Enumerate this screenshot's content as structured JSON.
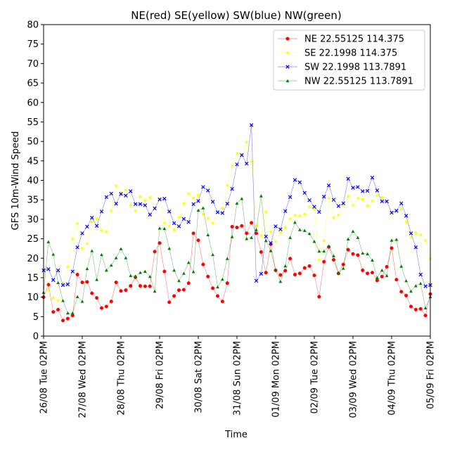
{
  "chart_data": {
    "type": "line",
    "title": "NE(red) SE(yellow) SW(blue) NW(green)",
    "xlabel": "Time",
    "ylabel": "GFS 10m-Wind Speed",
    "ylim": [
      0,
      80
    ],
    "yticks": [
      0,
      5,
      10,
      15,
      20,
      25,
      30,
      35,
      40,
      45,
      50,
      55,
      60,
      65,
      70,
      75,
      80
    ],
    "xlim": [
      0,
      80
    ],
    "xticks": [
      0,
      8,
      16,
      24,
      32,
      40,
      48,
      56,
      64,
      72,
      80
    ],
    "xtick_labels": [
      "26/08 Tue 02PM",
      "27/08 Wed 02PM",
      "28/08 Thu 02PM",
      "29/08 Fri 02PM",
      "30/08 Sat 02PM",
      "31/08 Sun 02PM",
      "01/09 Mon 02PM",
      "02/09 Tue 02PM",
      "03/09 Wed 02PM",
      "04/09 Thu 02PM",
      "05/09 Fri 02PM"
    ],
    "grid": false,
    "legend_position": "top-right",
    "series": [
      {
        "name": "NE 22.55125 114.375",
        "color": "#ff0000",
        "marker": "circle",
        "values": [
          10,
          13.2,
          6.2,
          6.8,
          4,
          4.5,
          5.3,
          15.8,
          13.8,
          13.9,
          11,
          9.8,
          7.2,
          7.6,
          8.9,
          13.8,
          11.6,
          11.8,
          12.9,
          15.1,
          12.9,
          12.8,
          12.8,
          21.7,
          23.9,
          16.6,
          8.7,
          10.3,
          11.8,
          11.9,
          13.6,
          26.4,
          24.6,
          18.4,
          15.3,
          12.3,
          10.3,
          8.9,
          13.6,
          28.1,
          27.9,
          28.3,
          26.4,
          29.1,
          26.4,
          21.6,
          16.3,
          23.6,
          16.9,
          15.7,
          16.8,
          19.9,
          15.8,
          16.1,
          17.5,
          18,
          15.6,
          10.1,
          19.1,
          22.9,
          19.6,
          16.1,
          18.4,
          22.2,
          21.1,
          20.8,
          16.9,
          16.1,
          16.3,
          14.3,
          15.3,
          17.8,
          22.6,
          14.5,
          11.4,
          10.4,
          7.6,
          6.8,
          7,
          5.3,
          10.8
        ]
      },
      {
        "name": "SE 22.1998 114.375",
        "color": "#ffff00",
        "marker": "star",
        "values": [
          17,
          11.8,
          9.8,
          9.1,
          13.6,
          17.8,
          25,
          28.9,
          22.5,
          23.8,
          29.3,
          30.2,
          27.1,
          26.8,
          32.2,
          38.6,
          36.9,
          37.5,
          33.6,
          32.1,
          35.8,
          34.8,
          35.6,
          32.9,
          35.3,
          29.1,
          28.2,
          27.3,
          30.5,
          34.1,
          36.6,
          35.5,
          36.3,
          31.3,
          30.3,
          29,
          31.9,
          32.9,
          38.7,
          43.7,
          46.9,
          46.5,
          49.8,
          44.8,
          28.3,
          25.8,
          31.9,
          26.8,
          24.2,
          26.6,
          27.9,
          30.1,
          31.1,
          30.9,
          31.3,
          33.2,
          32.6,
          19.6,
          24.5,
          35.4,
          30.4,
          31.1,
          33.6,
          35.9,
          33.6,
          35.4,
          35.2,
          33.4,
          34.7,
          36.1,
          35.6,
          34.7,
          31.3,
          31.8,
          32.5,
          29.4,
          25.3,
          26.5,
          26,
          24.5,
          19.9
        ]
      },
      {
        "name": "SW 22.1998 113.7891",
        "color": "#0000ff",
        "marker": "x",
        "values": [
          16.9,
          17.2,
          14.4,
          16.9,
          13.1,
          13.3,
          16.6,
          22.8,
          26.4,
          28.1,
          30.4,
          28.3,
          32,
          35.7,
          36.6,
          34,
          36.5,
          36.1,
          37.2,
          33.9,
          33.9,
          33.6,
          31.2,
          32.8,
          35.1,
          35.3,
          32,
          29,
          28.2,
          30.1,
          29.3,
          33.9,
          34.7,
          38.3,
          37.4,
          34.5,
          31.8,
          31.6,
          34,
          37.8,
          44.1,
          46.5,
          44.3,
          54.2,
          14.2,
          16,
          25.6,
          23.9,
          28.2,
          27.4,
          32.1,
          35.7,
          40.1,
          39.5,
          36.8,
          34.9,
          33.2,
          31.9,
          35.8,
          38.7,
          35,
          33.4,
          34.1,
          40.4,
          38.1,
          38.3,
          37.2,
          37.3,
          40.7,
          37.4,
          34.6,
          34.6,
          31.7,
          32.2,
          34.1,
          30.9,
          26.4,
          22.8,
          15.8,
          12.8,
          13.1
        ]
      },
      {
        "name": "NW 22.55125 113.7891",
        "color": "#008000",
        "marker": "triangle",
        "values": [
          11.2,
          24.2,
          21,
          13.7,
          9.1,
          5.9,
          5.9,
          10.1,
          8.9,
          17.3,
          21.9,
          14.5,
          20.9,
          16.9,
          18.2,
          20.1,
          22.4,
          20.1,
          15.5,
          15.4,
          16.3,
          16.6,
          15.3,
          11.5,
          27.7,
          27.6,
          22.5,
          16.9,
          14.2,
          16.1,
          18.9,
          16.5,
          32.3,
          32.9,
          26,
          20.9,
          12.6,
          14.6,
          19.9,
          25.5,
          34.1,
          35.3,
          25,
          25.3,
          27.3,
          36,
          24.5,
          21.9,
          17,
          14,
          18,
          25.3,
          29.2,
          27.3,
          27.1,
          26.3,
          24.3,
          21.8,
          21.8,
          23.1,
          20.6,
          16.2,
          17.4,
          24.9,
          26.9,
          25.3,
          21.3,
          21.1,
          19.5,
          15,
          16.9,
          15.5,
          24.6,
          24.8,
          17.9,
          14.2,
          11.5,
          12.9,
          13.5,
          7.2,
          10.1
        ]
      }
    ]
  }
}
